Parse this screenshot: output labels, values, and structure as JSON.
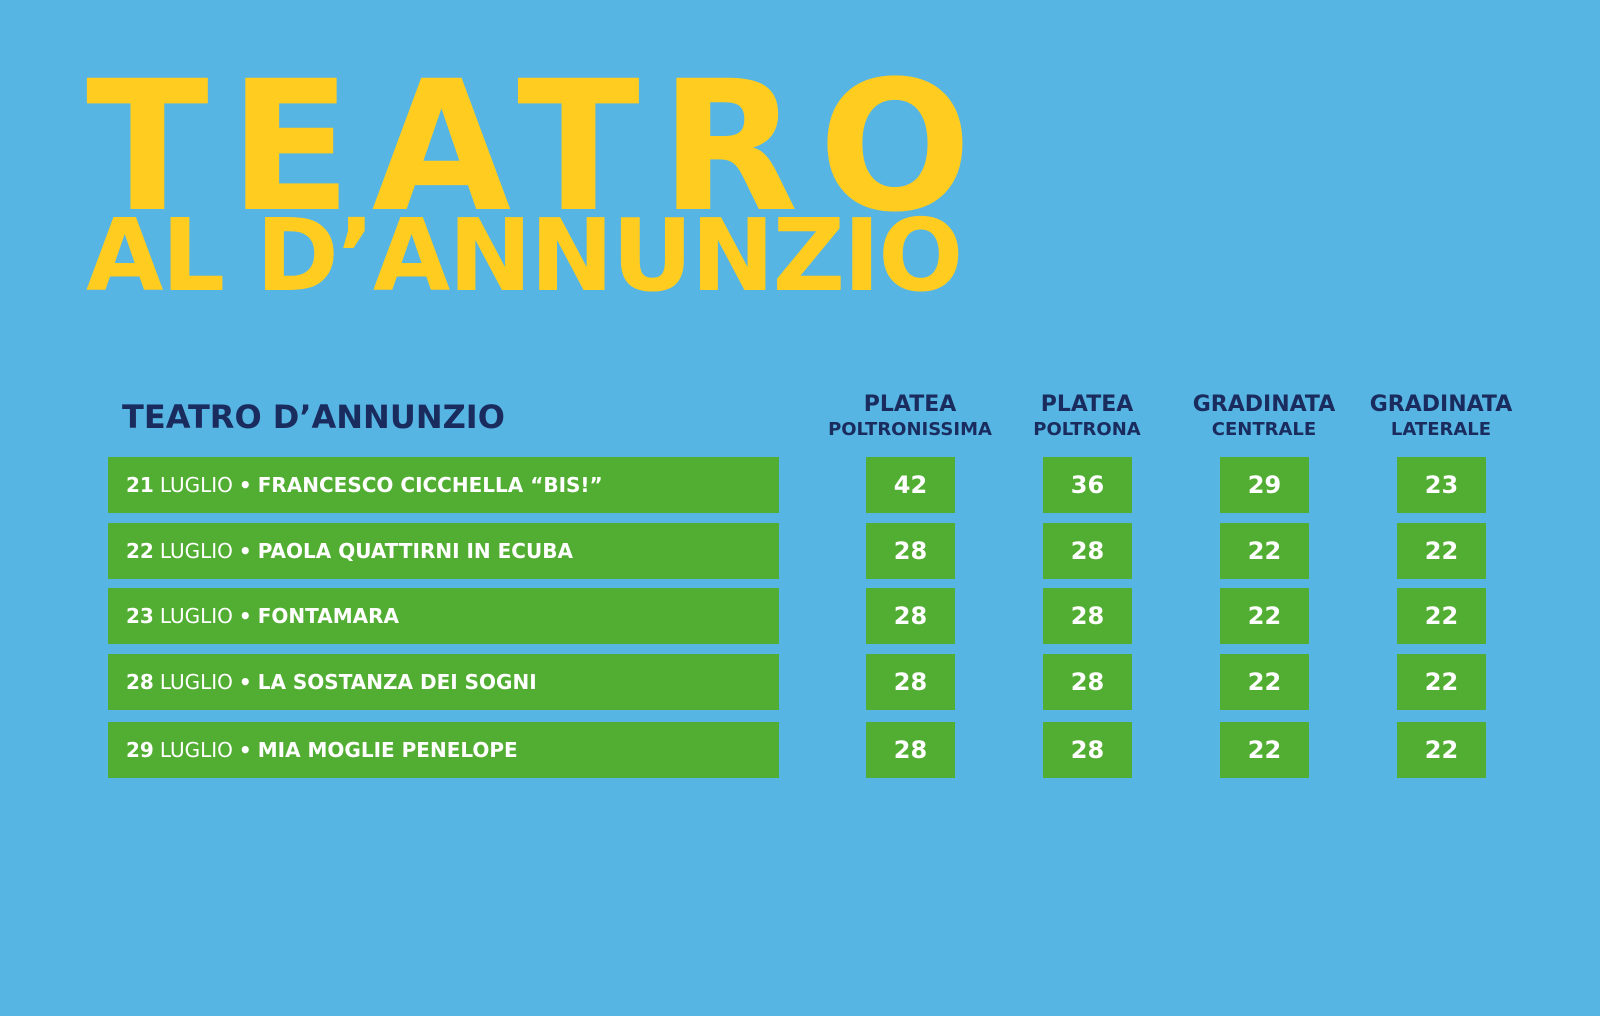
{
  "hero": {
    "line1": "TEATRO",
    "line2": "AL D’ANNUNZIO"
  },
  "table": {
    "venue": "TEATRO D’ANNUNZIO",
    "columns": [
      {
        "line1": "PLATEA",
        "line2": "POLTRONISSIMA"
      },
      {
        "line1": "PLATEA",
        "line2": "POLTRONA"
      },
      {
        "line1": "GRADINATA",
        "line2": "CENTRALE"
      },
      {
        "line1": "GRADINATA",
        "line2": "LATERALE"
      }
    ],
    "rows": [
      {
        "day": "21",
        "month": "LUGLIO",
        "sep": "•",
        "title": "FRANCESCO CICCHELLA “BIS!”",
        "prices": [
          "42",
          "36",
          "29",
          "23"
        ]
      },
      {
        "day": "22",
        "month": "LUGLIO",
        "sep": "•",
        "title": "PAOLA QUATTIRNI IN ECUBA",
        "prices": [
          "28",
          "28",
          "22",
          "22"
        ]
      },
      {
        "day": "23",
        "month": "LUGLIO",
        "sep": "•",
        "title": "FONTAMARA",
        "prices": [
          "28",
          "28",
          "22",
          "22"
        ]
      },
      {
        "day": "28",
        "month": "LUGLIO",
        "sep": "•",
        "title": "LA SOSTANZA DEI SOGNI",
        "prices": [
          "28",
          "28",
          "22",
          "22"
        ]
      },
      {
        "day": "29",
        "month": "LUGLIO",
        "sep": "•",
        "title": "MIA MOGLIE PENELOPE",
        "prices": [
          "28",
          "28",
          "22",
          "22"
        ]
      }
    ]
  },
  "colors": {
    "background": "#56b5e3",
    "title_yellow": "#ffcc1f",
    "navy": "#1a2b5e",
    "green": "#52ae32",
    "white": "#ffffff"
  }
}
